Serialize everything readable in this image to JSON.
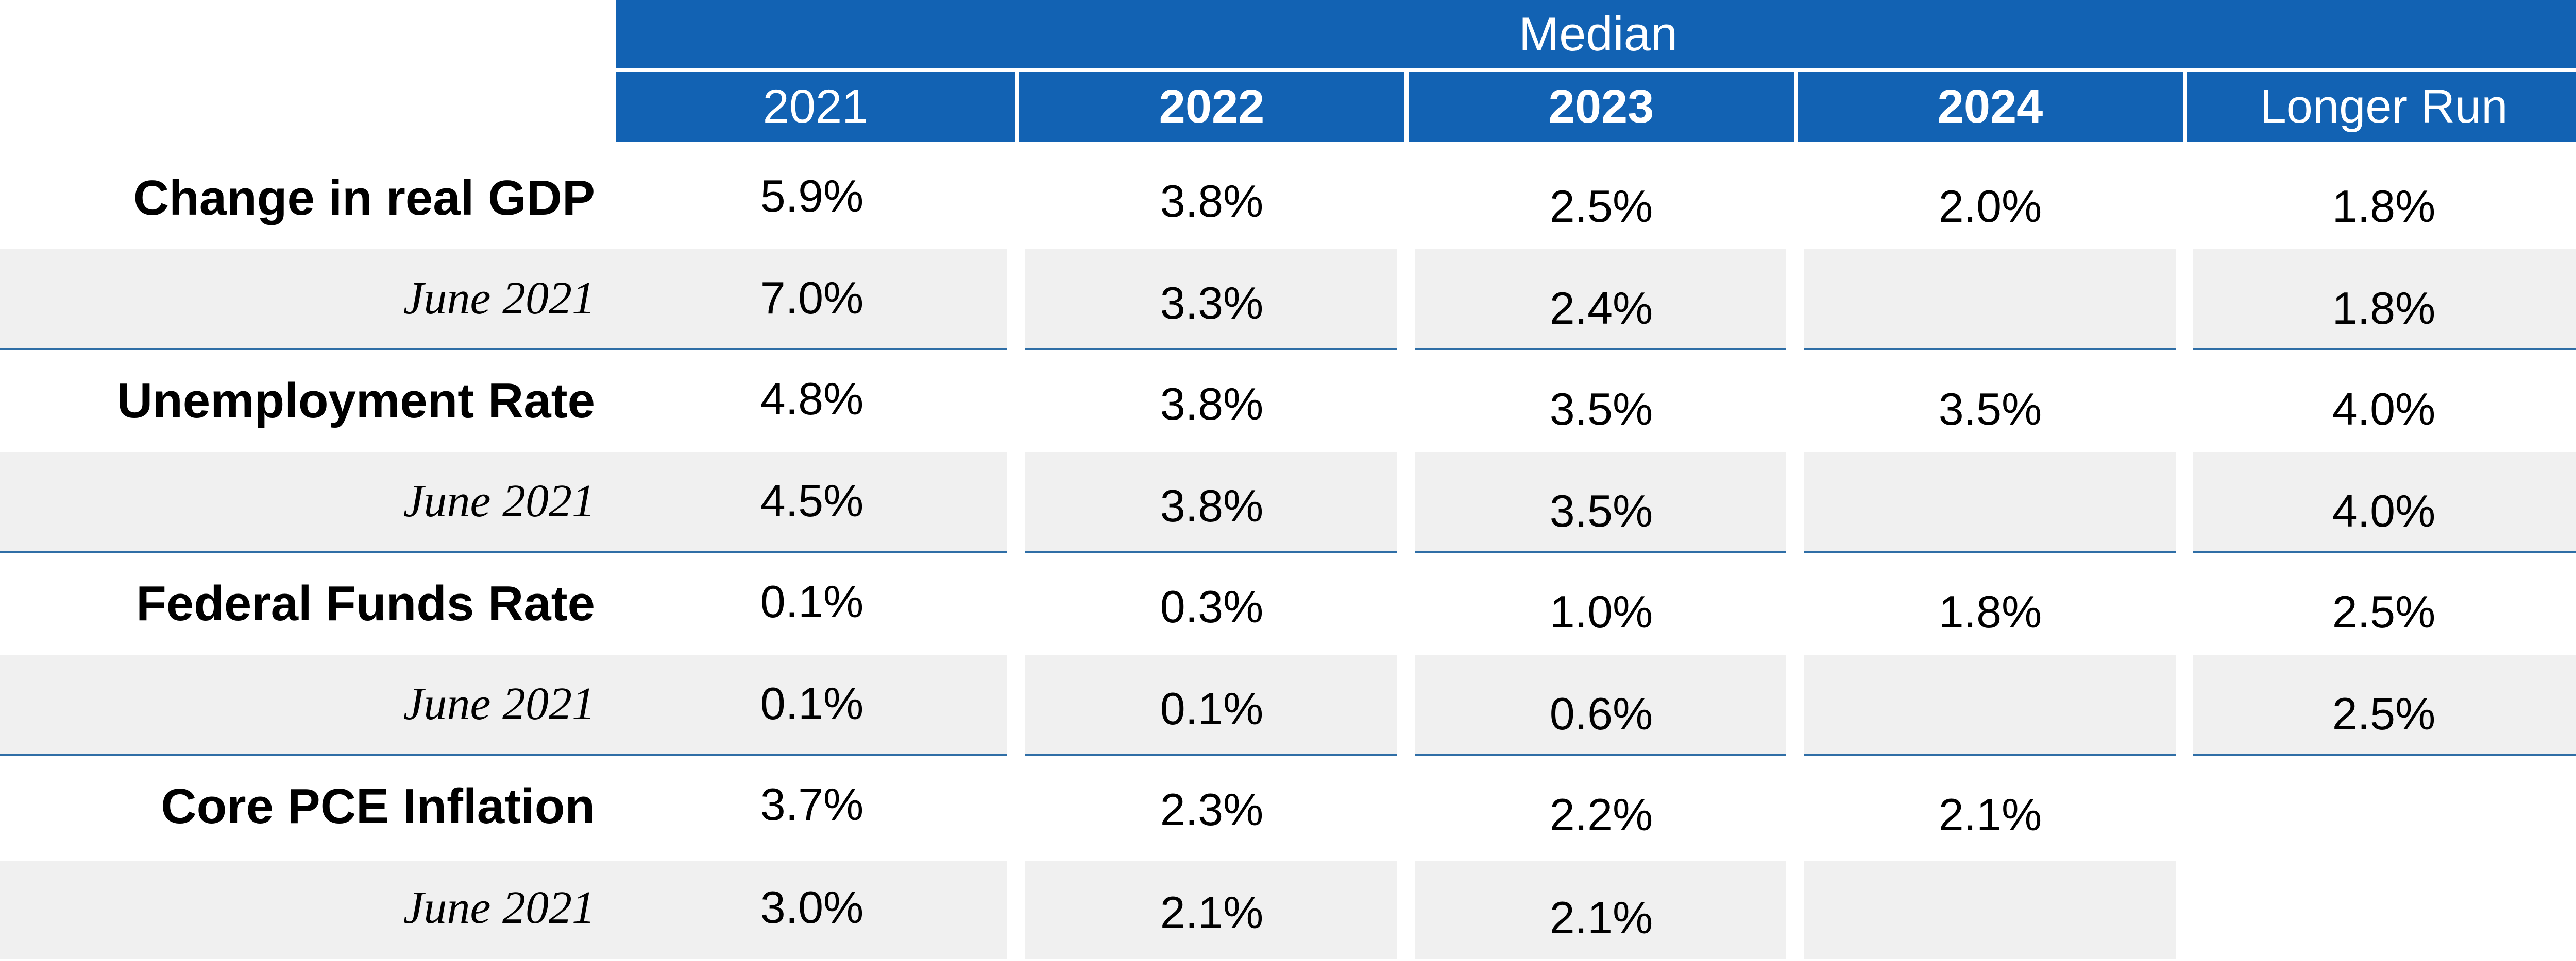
{
  "chart_data": {
    "type": "table",
    "header": "Median",
    "columns": [
      "2021",
      "2022",
      "2023",
      "2024",
      "Longer Run"
    ],
    "rows": [
      {
        "label": "Change in real GDP",
        "kind": "main",
        "values": [
          "5.9%",
          "3.8%",
          "2.5%",
          "2.0%",
          "1.8%"
        ]
      },
      {
        "label": "June 2021",
        "kind": "sub",
        "values": [
          "7.0%",
          "3.3%",
          "2.4%",
          "",
          "1.8%"
        ]
      },
      {
        "label": "Unemployment Rate",
        "kind": "main",
        "values": [
          "4.8%",
          "3.8%",
          "3.5%",
          "3.5%",
          "4.0%"
        ]
      },
      {
        "label": "June 2021",
        "kind": "sub",
        "values": [
          "4.5%",
          "3.8%",
          "3.5%",
          "",
          "4.0%"
        ]
      },
      {
        "label": "Federal Funds Rate",
        "kind": "main",
        "values": [
          "0.1%",
          "0.3%",
          "1.0%",
          "1.8%",
          "2.5%"
        ]
      },
      {
        "label": "June 2021",
        "kind": "sub",
        "values": [
          "0.1%",
          "0.1%",
          "0.6%",
          "",
          "2.5%"
        ]
      },
      {
        "label": "Core PCE Inflation",
        "kind": "main",
        "values": [
          "3.7%",
          "2.3%",
          "2.2%",
          "2.1%",
          ""
        ]
      },
      {
        "label": "June 2021",
        "kind": "sub",
        "values": [
          "3.0%",
          "2.1%",
          "2.1%",
          "",
          ""
        ]
      }
    ]
  },
  "colors": {
    "header_background": "#1262b3",
    "header_text": "#ffffff",
    "shaded_row": "#f0f0f0",
    "rule": "#2f6ea6"
  }
}
